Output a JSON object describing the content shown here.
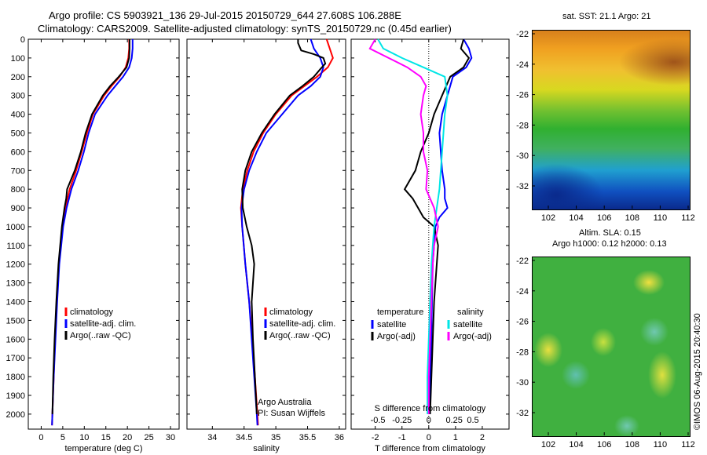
{
  "title_line1": "Argo profile: CS 5903921_136 29-Jul-2015 20150729_644 27.608S 106.288E",
  "title_line2": "Climatology: CARS2009. Satellite-adjusted climatology: synTS_20150729.nc (0.45d earlier)",
  "colors": {
    "climatology": "#ff0000",
    "satellite": "#0000ff",
    "argo": "#000000",
    "cyan": "#00e6e6",
    "magenta": "#ff00ff"
  },
  "chart_data": [
    {
      "type": "line",
      "xlabel": "temperature (deg C)",
      "ylabel": "",
      "xlim": [
        -3,
        32
      ],
      "ylim": [
        2080,
        0
      ],
      "xticks": [
        0,
        5,
        10,
        15,
        20,
        25,
        30
      ],
      "yticks": [
        0,
        100,
        200,
        300,
        400,
        500,
        600,
        700,
        800,
        900,
        1000,
        1100,
        1200,
        1300,
        1400,
        1500,
        1600,
        1700,
        1800,
        1900,
        2000
      ],
      "legend": [
        "climatology",
        "satellite-adj. clim.",
        "Argo(..raw -QC)"
      ],
      "series": [
        {
          "name": "climatology",
          "color": "#ff0000",
          "depth": [
            0,
            50,
            100,
            150,
            200,
            250,
            300,
            400,
            500,
            600,
            700,
            800,
            900,
            1000,
            1200,
            1400,
            1600,
            1800,
            2000,
            2060
          ],
          "values": [
            20.4,
            20.4,
            20.2,
            19.6,
            18.2,
            16.3,
            14.6,
            12.0,
            10.6,
            9.4,
            8.1,
            6.6,
            5.6,
            4.9,
            4.1,
            3.6,
            3.2,
            2.9,
            2.6,
            2.5
          ]
        },
        {
          "name": "satellite-adj. clim.",
          "color": "#0000ff",
          "depth": [
            0,
            50,
            100,
            150,
            200,
            250,
            300,
            400,
            500,
            600,
            700,
            800,
            900,
            1000,
            1200,
            1400,
            1600,
            1800,
            2000,
            2060
          ],
          "values": [
            21.2,
            21.2,
            21.0,
            20.4,
            19.0,
            17.2,
            15.4,
            12.5,
            11.0,
            9.9,
            8.6,
            7.0,
            5.9,
            5.1,
            4.2,
            3.7,
            3.3,
            2.9,
            2.6,
            2.5
          ]
        },
        {
          "name": "Argo(..raw -QC)",
          "color": "#000000",
          "depth": [
            0,
            50,
            100,
            150,
            200,
            250,
            300,
            400,
            500,
            600,
            700,
            800,
            850,
            900,
            1000,
            1200,
            1400,
            1600,
            1800,
            2000
          ],
          "values": [
            20.5,
            20.5,
            20.4,
            19.8,
            18.0,
            16.0,
            14.3,
            11.8,
            10.3,
            9.2,
            7.8,
            6.0,
            5.8,
            5.4,
            4.8,
            4.0,
            3.5,
            3.1,
            2.8,
            2.6
          ]
        }
      ]
    },
    {
      "type": "line",
      "xlabel": "salinity",
      "ylabel": "",
      "xlim": [
        33.6,
        36.1
      ],
      "ylim": [
        2080,
        0
      ],
      "xticks": [
        34,
        34.5,
        35,
        35.5,
        36
      ],
      "legend": [
        "climatology",
        "satellite-adj. clim.",
        "Argo(..raw -QC)"
      ],
      "annotation": [
        "Argo Australia",
        "PI: Susan Wijffels"
      ],
      "series": [
        {
          "name": "climatology",
          "color": "#ff0000",
          "depth": [
            0,
            50,
            100,
            150,
            200,
            250,
            300,
            400,
            500,
            600,
            700,
            800,
            900,
            1000,
            1200,
            1400,
            1600,
            1800,
            2000,
            2060
          ],
          "values": [
            35.8,
            35.85,
            35.9,
            35.82,
            35.65,
            35.45,
            35.25,
            35.0,
            34.8,
            34.65,
            34.55,
            34.48,
            34.45,
            34.47,
            34.52,
            34.58,
            34.63,
            34.67,
            34.71,
            34.72
          ]
        },
        {
          "name": "satellite-adj. clim.",
          "color": "#0000ff",
          "depth": [
            0,
            50,
            100,
            150,
            200,
            250,
            300,
            400,
            500,
            600,
            700,
            800,
            900,
            1000,
            1200,
            1400,
            1600,
            1800,
            2000,
            2060
          ],
          "values": [
            35.55,
            35.6,
            35.7,
            35.75,
            35.7,
            35.55,
            35.35,
            35.1,
            34.85,
            34.7,
            34.58,
            34.5,
            34.46,
            34.47,
            34.52,
            34.58,
            34.62,
            34.66,
            34.7,
            34.71
          ]
        },
        {
          "name": "Argo(..raw -QC)",
          "color": "#000000",
          "depth": [
            0,
            20,
            60,
            80,
            100,
            130,
            160,
            200,
            250,
            300,
            400,
            500,
            600,
            700,
            800,
            900,
            1000,
            1100,
            1200,
            1300,
            1400,
            1600,
            1800,
            2000
          ],
          "values": [
            35.35,
            35.35,
            35.4,
            35.6,
            35.75,
            35.78,
            35.7,
            35.6,
            35.42,
            35.22,
            34.98,
            34.78,
            34.62,
            34.52,
            34.47,
            34.48,
            34.54,
            34.62,
            34.66,
            34.64,
            34.62,
            34.64,
            34.67,
            34.7
          ]
        }
      ]
    },
    {
      "type": "line",
      "xlabel": "T difference from climatology",
      "top_axis_label": "S difference from climatology",
      "xlim": [
        -2.9,
        3.0
      ],
      "ylim": [
        2080,
        0
      ],
      "xticks": [
        -2,
        -1,
        0,
        1,
        2
      ],
      "top_ticks": [
        "-0.5",
        "-0.25",
        "0",
        "0.25",
        "0.5"
      ],
      "legend_temperature": {
        "heading": "temperature",
        "items": [
          "satellite",
          "Argo(-adj)"
        ]
      },
      "legend_salinity": {
        "heading": "salinity",
        "items": [
          "satellite",
          "Argo(-adj)"
        ]
      },
      "series": [
        {
          "name": "temperature satellite",
          "color": "#0000ff",
          "depth": [
            0,
            50,
            100,
            150,
            200,
            300,
            400,
            500,
            600,
            700,
            800,
            850,
            900,
            950,
            1000,
            1200,
            1400,
            1600,
            1800,
            2000
          ],
          "values": [
            1.3,
            1.5,
            1.6,
            1.4,
            0.9,
            0.7,
            0.5,
            0.4,
            0.45,
            0.5,
            0.6,
            0.6,
            0.7,
            0.4,
            0.25,
            0.15,
            0.12,
            0.1,
            0.05,
            0.05
          ]
        },
        {
          "name": "temperature Argo(-adj)",
          "color": "#000000",
          "depth": [
            0,
            50,
            100,
            150,
            200,
            300,
            400,
            500,
            600,
            700,
            800,
            850,
            900,
            950,
            1000,
            1100,
            1200,
            1300,
            1400,
            1600,
            1800,
            2000
          ],
          "values": [
            1.3,
            1.2,
            1.5,
            1.3,
            0.8,
            0.5,
            0.2,
            0.0,
            -0.3,
            -0.5,
            -0.9,
            -0.6,
            -0.4,
            -0.2,
            0.2,
            0.35,
            0.3,
            0.25,
            0.2,
            0.15,
            0.1,
            0.05
          ]
        },
        {
          "name": "salinity satellite",
          "color": "#00e6e6",
          "depth": [
            0,
            50,
            100,
            150,
            200,
            300,
            400,
            600,
            800,
            1000,
            1200,
            1400,
            1600,
            1800,
            2000
          ],
          "values": [
            -1.9,
            -1.7,
            -1.0,
            -0.2,
            0.6,
            0.7,
            0.6,
            0.5,
            0.4,
            0.2,
            0.1,
            0.05,
            0.0,
            -0.05,
            -0.05
          ]
        },
        {
          "name": "salinity Argo(-adj)",
          "color": "#ff00ff",
          "depth": [
            0,
            50,
            100,
            150,
            200,
            250,
            300,
            400,
            500,
            600,
            700,
            800,
            900,
            1000,
            1100,
            1200,
            1400,
            1600,
            1800,
            2000
          ],
          "values": [
            -2.0,
            -2.2,
            -1.5,
            -0.8,
            -0.3,
            -0.1,
            -0.2,
            -0.3,
            -0.2,
            -0.2,
            -0.05,
            -0.1,
            0.2,
            0.35,
            0.2,
            0.15,
            0.1,
            0.05,
            0.0,
            0.0
          ]
        }
      ]
    },
    {
      "type": "heatmap",
      "title": "sat. SST: 21.1 Argo: 21",
      "xticks": [
        102,
        104,
        106,
        108,
        110,
        112
      ],
      "yticks": [
        -22,
        -24,
        -26,
        -28,
        -30,
        -32
      ]
    },
    {
      "type": "heatmap",
      "title_line1": "Altim. SLA: 0.15",
      "title_line2": "Argo h1000: 0.12 h2000: 0.13",
      "xticks": [
        102,
        104,
        106,
        108,
        110,
        112
      ],
      "yticks": [
        -22,
        -24,
        -26,
        -28,
        -30,
        -32
      ]
    }
  ],
  "footer_stamp": "©IMOS 06-Aug-2015 20:40:30"
}
